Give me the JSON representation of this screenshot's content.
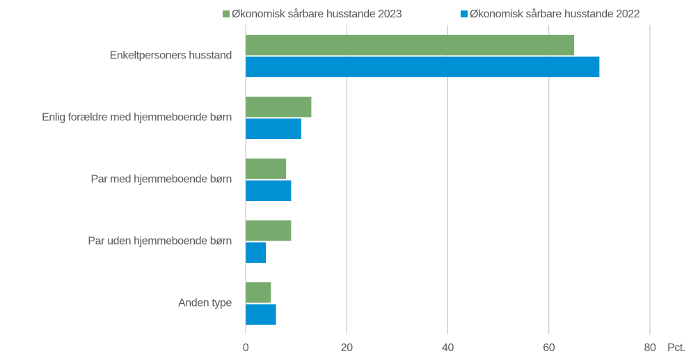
{
  "chart_data": {
    "type": "hbar",
    "categories": [
      "Enkeltpersoners husstand",
      "Enlig forældre med hjemmeboende børn",
      "Par med hjemmeboende børn",
      "Par uden hjemmeboende børn",
      "Anden type"
    ],
    "series": [
      {
        "name": "Økonomisk sårbare husstande 2023",
        "color": "#77ab6e",
        "values": [
          65,
          13,
          8,
          9,
          5
        ]
      },
      {
        "name": "Økonomisk sårbare husstande 2022",
        "color": "#0090d4",
        "values": [
          70,
          11,
          9,
          4,
          6
        ]
      }
    ],
    "xlim": [
      0,
      80
    ],
    "xticks": [
      0,
      20,
      40,
      60,
      80
    ],
    "xlabel": "Pct.",
    "grid": true,
    "legend": "top"
  }
}
